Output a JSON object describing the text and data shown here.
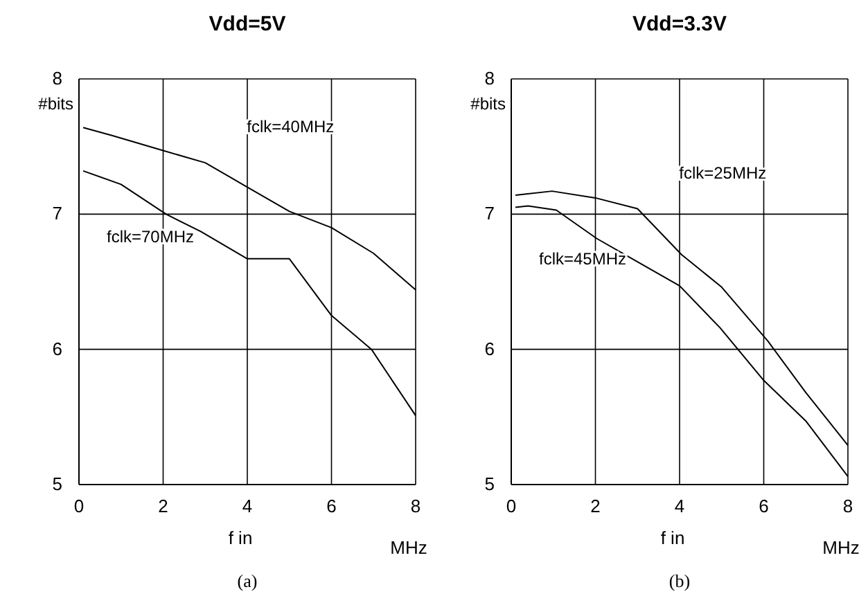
{
  "chart_data": [
    {
      "type": "line",
      "title": "Vdd=5V",
      "xlabel": "f in",
      "ylabel": "#bits",
      "xlim": [
        0,
        8
      ],
      "ylim": [
        5,
        8
      ],
      "xticks": [
        0,
        2,
        4,
        6,
        8
      ],
      "yticks": [
        5,
        6,
        7,
        8
      ],
      "grid": true,
      "annotations": [
        "MHz",
        "(a)"
      ],
      "series": [
        {
          "name": "fclk=40MHz",
          "color": "#000000",
          "x": [
            0.1,
            0.8,
            2.0,
            3.0,
            4.0,
            5.0,
            6.0,
            7.0,
            8.0
          ],
          "values": [
            7.64,
            7.58,
            7.47,
            7.38,
            7.2,
            7.02,
            6.9,
            6.71,
            6.44
          ]
        },
        {
          "name": "fclk=70MHz",
          "color": "#000000",
          "x": [
            0.1,
            1.0,
            2.07,
            2.9,
            4.0,
            5.0,
            6.0,
            6.95,
            8.0
          ],
          "values": [
            7.32,
            7.22,
            7.0,
            6.87,
            6.67,
            6.67,
            6.25,
            6.0,
            5.51
          ]
        }
      ]
    },
    {
      "type": "line",
      "title": "Vdd=3.3V",
      "xlabel": "f in",
      "ylabel": "#bits",
      "xlim": [
        0,
        8
      ],
      "ylim": [
        5,
        8
      ],
      "xticks": [
        0,
        2,
        4,
        6,
        8
      ],
      "yticks": [
        5,
        6,
        7,
        8
      ],
      "grid": true,
      "annotations": [
        "MHz",
        "(b)"
      ],
      "series": [
        {
          "name": "fclk=25MHz",
          "color": "#000000",
          "x": [
            0.1,
            0.97,
            2.0,
            3.0,
            4.05,
            5.0,
            6.1,
            7.0,
            8.0
          ],
          "values": [
            7.14,
            7.17,
            7.12,
            7.04,
            6.7,
            6.46,
            6.06,
            5.68,
            5.29
          ]
        },
        {
          "name": "fclk=45MHz",
          "color": "#000000",
          "x": [
            0.1,
            0.4,
            1.07,
            2.03,
            3.04,
            4.0,
            4.96,
            6.0,
            7.0,
            8.0
          ],
          "values": [
            7.05,
            7.06,
            7.03,
            6.82,
            6.64,
            6.47,
            6.16,
            5.77,
            5.47,
            5.06
          ]
        }
      ]
    }
  ]
}
